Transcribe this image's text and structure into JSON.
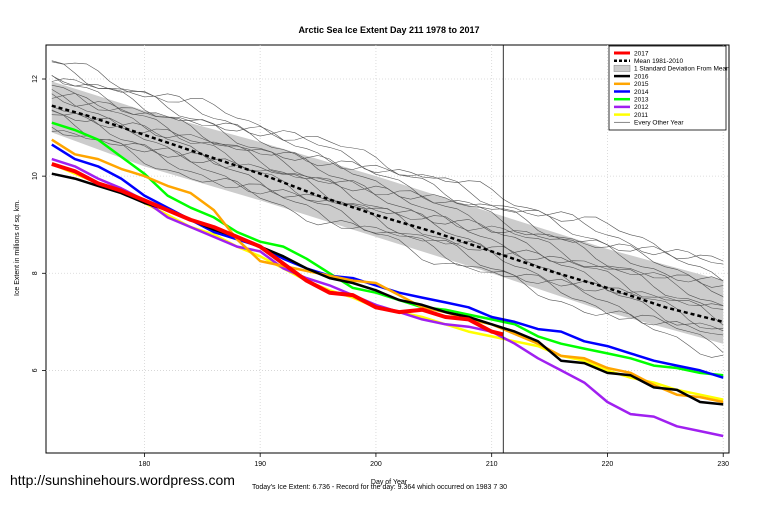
{
  "watermark": "http://sunshinehours.wordpress.com",
  "footer_note": "Today's Ice Extent: 6.736 - Record for the day: 9.364 which occurred on 1983 7 30",
  "chart_data": {
    "type": "line",
    "title": "Arctic Sea Ice Extent Day 211 1978 to 2017",
    "xlabel": "Day of Year",
    "ylabel": "Ice Extent in millions of sq. km.",
    "xlim": [
      171.5,
      230.5
    ],
    "ylim": [
      4.3,
      12.7
    ],
    "xticks": [
      180,
      190,
      200,
      210,
      220,
      230
    ],
    "yticks": [
      6,
      8,
      10,
      12
    ],
    "grid": true,
    "marker_day": 211,
    "legend_position": "top-right",
    "band": {
      "name": "1 Standard Deviation From Mean",
      "color": "#cccccc",
      "x": [
        172,
        180,
        190,
        200,
        210,
        220,
        230
      ],
      "upper": [
        11.95,
        11.35,
        10.7,
        10.0,
        9.25,
        8.5,
        7.85
      ],
      "lower": [
        10.9,
        10.2,
        9.5,
        8.75,
        8.0,
        7.2,
        6.55
      ]
    },
    "series": [
      {
        "name": "2017",
        "color": "#ff0000",
        "style": "solid",
        "width": 4,
        "x": [
          172,
          174,
          176,
          178,
          180,
          182,
          184,
          186,
          188,
          190,
          192,
          194,
          196,
          198,
          200,
          202,
          204,
          206,
          208,
          210,
          211
        ],
        "y": [
          10.25,
          10.1,
          9.85,
          9.7,
          9.5,
          9.3,
          9.1,
          8.95,
          8.75,
          8.55,
          8.2,
          7.85,
          7.6,
          7.55,
          7.3,
          7.2,
          7.25,
          7.1,
          7.05,
          6.8,
          6.74
        ]
      },
      {
        "name": "Mean 1981-2010",
        "color": "#000000",
        "style": "dashed",
        "width": 2.5,
        "x": [
          172,
          175,
          180,
          185,
          190,
          195,
          200,
          205,
          210,
          215,
          220,
          225,
          230
        ],
        "y": [
          11.45,
          11.25,
          10.85,
          10.45,
          10.05,
          9.6,
          9.2,
          8.85,
          8.45,
          8.05,
          7.7,
          7.3,
          7.0
        ]
      },
      {
        "name": "2016",
        "color": "#000000",
        "style": "solid",
        "width": 2.5,
        "x": [
          172,
          174,
          176,
          178,
          180,
          182,
          184,
          186,
          188,
          190,
          192,
          194,
          196,
          198,
          200,
          202,
          204,
          206,
          208,
          210,
          212,
          214,
          216,
          218,
          220,
          222,
          224,
          226,
          228,
          230
        ],
        "y": [
          10.05,
          9.95,
          9.8,
          9.65,
          9.45,
          9.3,
          9.1,
          8.9,
          8.75,
          8.55,
          8.35,
          8.1,
          7.9,
          7.8,
          7.65,
          7.45,
          7.35,
          7.2,
          7.1,
          6.95,
          6.8,
          6.6,
          6.2,
          6.15,
          5.95,
          5.9,
          5.65,
          5.6,
          5.35,
          5.3
        ]
      },
      {
        "name": "2015",
        "color": "#ffa500",
        "style": "solid",
        "width": 2.5,
        "x": [
          172,
          174,
          176,
          178,
          180,
          182,
          184,
          186,
          188,
          190,
          192,
          194,
          196,
          198,
          200,
          202,
          204,
          206,
          208,
          210,
          212,
          214,
          216,
          218,
          220,
          222,
          224,
          226,
          228,
          230
        ],
        "y": [
          10.75,
          10.45,
          10.35,
          10.15,
          10.0,
          9.8,
          9.65,
          9.3,
          8.7,
          8.25,
          8.15,
          8.05,
          7.95,
          7.85,
          7.8,
          7.55,
          7.3,
          7.2,
          7.05,
          6.95,
          6.75,
          6.55,
          6.3,
          6.25,
          6.05,
          5.95,
          5.7,
          5.5,
          5.45,
          5.35
        ]
      },
      {
        "name": "2014",
        "color": "#0000ff",
        "style": "solid",
        "width": 2.5,
        "x": [
          172,
          174,
          176,
          178,
          180,
          182,
          184,
          186,
          188,
          190,
          192,
          194,
          196,
          198,
          200,
          202,
          204,
          206,
          208,
          210,
          212,
          214,
          216,
          218,
          220,
          222,
          224,
          226,
          228,
          230
        ],
        "y": [
          10.65,
          10.35,
          10.2,
          9.95,
          9.6,
          9.35,
          9.1,
          8.85,
          8.7,
          8.55,
          8.3,
          8.1,
          7.95,
          7.9,
          7.75,
          7.6,
          7.5,
          7.4,
          7.3,
          7.1,
          7.0,
          6.85,
          6.8,
          6.6,
          6.5,
          6.35,
          6.2,
          6.1,
          6.0,
          5.85
        ]
      },
      {
        "name": "2013",
        "color": "#00ff00",
        "style": "solid",
        "width": 2.5,
        "x": [
          172,
          174,
          176,
          178,
          180,
          182,
          184,
          186,
          188,
          190,
          192,
          194,
          196,
          198,
          200,
          202,
          204,
          206,
          208,
          210,
          212,
          214,
          216,
          218,
          220,
          222,
          224,
          226,
          228,
          230
        ],
        "y": [
          11.1,
          10.95,
          10.75,
          10.4,
          10.05,
          9.6,
          9.35,
          9.15,
          8.85,
          8.65,
          8.55,
          8.3,
          8.0,
          7.7,
          7.6,
          7.45,
          7.3,
          7.25,
          7.15,
          7.05,
          6.95,
          6.7,
          6.55,
          6.45,
          6.35,
          6.25,
          6.1,
          6.05,
          5.95,
          5.9
        ]
      },
      {
        "name": "2012",
        "color": "#a020f0",
        "style": "solid",
        "width": 2.5,
        "x": [
          172,
          174,
          176,
          178,
          180,
          182,
          184,
          186,
          188,
          190,
          192,
          194,
          196,
          198,
          200,
          202,
          204,
          206,
          208,
          210,
          212,
          214,
          216,
          218,
          220,
          222,
          224,
          226,
          228,
          230
        ],
        "y": [
          10.35,
          10.2,
          9.95,
          9.75,
          9.5,
          9.15,
          8.95,
          8.75,
          8.55,
          8.45,
          8.1,
          7.9,
          7.75,
          7.55,
          7.35,
          7.2,
          7.05,
          6.95,
          6.9,
          6.8,
          6.55,
          6.25,
          6.0,
          5.75,
          5.35,
          5.1,
          5.05,
          4.85,
          4.75,
          4.65
        ]
      },
      {
        "name": "2011",
        "color": "#ffff00",
        "style": "solid",
        "width": 2.5,
        "x": [
          172,
          174,
          176,
          178,
          180,
          182,
          184,
          186,
          188,
          190,
          192,
          194,
          196,
          198,
          200,
          202,
          204,
          206,
          208,
          210,
          212,
          214,
          216,
          218,
          220,
          222,
          224,
          226,
          228,
          230
        ],
        "y": [
          10.25,
          10.05,
          9.85,
          9.7,
          9.45,
          9.2,
          8.95,
          8.8,
          8.55,
          8.35,
          8.1,
          7.85,
          7.65,
          7.5,
          7.3,
          7.2,
          7.1,
          6.95,
          6.8,
          6.7,
          6.6,
          6.5,
          6.3,
          6.2,
          6.0,
          5.85,
          5.75,
          5.6,
          5.5,
          5.4
        ]
      },
      {
        "name": "Every Other Year",
        "color": "#555555",
        "style": "thin",
        "width": 0.7,
        "x": [],
        "y": []
      }
    ],
    "other_years": {
      "color": "#555555",
      "x": [
        172,
        230
      ],
      "start": [
        12.35,
        12.25,
        12.15,
        12.05,
        11.95,
        11.85,
        11.75,
        11.7,
        11.6,
        11.5,
        11.4,
        11.3,
        11.2,
        11.1,
        11.0
      ],
      "end": [
        8.2,
        8.1,
        7.95,
        7.8,
        7.7,
        7.55,
        7.4,
        7.3,
        7.15,
        7.05,
        6.9,
        6.8,
        6.6,
        6.5,
        6.35
      ]
    }
  }
}
